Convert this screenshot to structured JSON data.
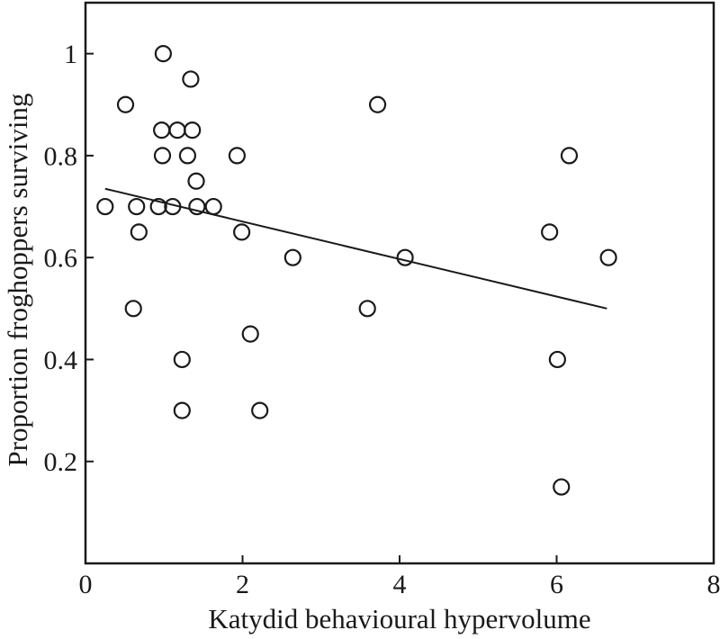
{
  "figure": {
    "background": "#ffffff",
    "ink_color": "#1a1a1a"
  },
  "chart_data": {
    "type": "scatter",
    "title": "",
    "xlabel": "Katydid behavioural hypervolume",
    "ylabel": "Proportion froghoppers surviving",
    "xlim": [
      0,
      8
    ],
    "ylim": [
      0,
      1.1
    ],
    "xticks": [
      0,
      2,
      4,
      6,
      8
    ],
    "xtick_labels": [
      "0",
      "2",
      "4",
      "6",
      "8"
    ],
    "yticks": [
      0.2,
      0.4,
      0.6,
      0.8,
      1
    ],
    "ytick_labels": [
      "0.2",
      "0.4",
      "0.6",
      "0.8",
      "1"
    ],
    "grid": false,
    "legend": "none",
    "marker": "open-circle",
    "points": [
      [
        0.99,
        1.0
      ],
      [
        1.34,
        0.95
      ],
      [
        0.51,
        0.9
      ],
      [
        3.72,
        0.9
      ],
      [
        0.97,
        0.85
      ],
      [
        1.17,
        0.85
      ],
      [
        1.36,
        0.85
      ],
      [
        0.98,
        0.8
      ],
      [
        1.3,
        0.8
      ],
      [
        1.93,
        0.8
      ],
      [
        6.16,
        0.8
      ],
      [
        1.41,
        0.75
      ],
      [
        0.25,
        0.7
      ],
      [
        0.65,
        0.7
      ],
      [
        0.93,
        0.7
      ],
      [
        1.11,
        0.7
      ],
      [
        1.42,
        0.7
      ],
      [
        1.63,
        0.7
      ],
      [
        0.68,
        0.65
      ],
      [
        1.99,
        0.65
      ],
      [
        5.91,
        0.65
      ],
      [
        2.64,
        0.6
      ],
      [
        4.07,
        0.6
      ],
      [
        6.66,
        0.6
      ],
      [
        0.61,
        0.5
      ],
      [
        3.59,
        0.5
      ],
      [
        2.1,
        0.45
      ],
      [
        1.23,
        0.4
      ],
      [
        6.01,
        0.4
      ],
      [
        1.23,
        0.3
      ],
      [
        2.22,
        0.3
      ],
      [
        6.06,
        0.15
      ]
    ],
    "trendline": {
      "x1": 0.25,
      "y1": 0.735,
      "x2": 6.64,
      "y2": 0.5
    }
  }
}
